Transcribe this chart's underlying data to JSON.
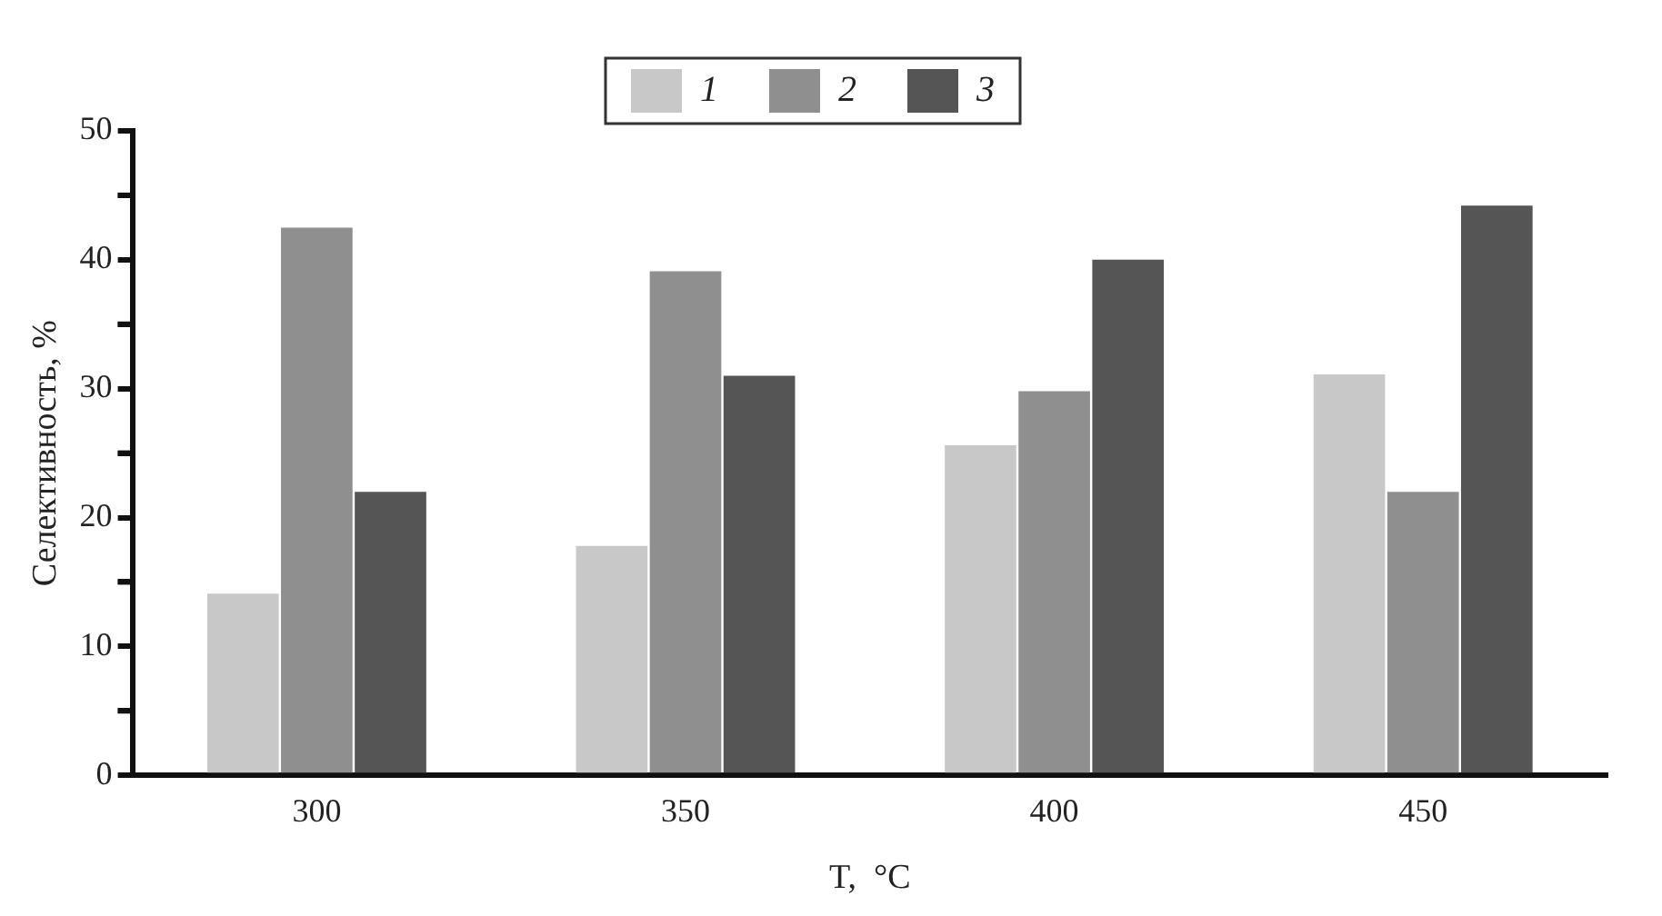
{
  "chart_data": {
    "type": "bar",
    "xlabel": "T,  °C",
    "ylabel": "Селективность, %",
    "categories": [
      "300",
      "350",
      "400",
      "450"
    ],
    "series": [
      {
        "name": "1",
        "color": "#c8c8c8",
        "values": [
          14.1,
          17.8,
          25.6,
          31.1
        ]
      },
      {
        "name": "2",
        "color": "#8f8f8f",
        "values": [
          42.5,
          39.1,
          29.8,
          22.0
        ]
      },
      {
        "name": "3",
        "color": "#555555",
        "values": [
          22.0,
          31.0,
          40.0,
          44.2
        ]
      }
    ],
    "ylim": [
      0,
      50
    ],
    "yticks": [
      0,
      {
        "value": 5,
        "label": null
      },
      10,
      {
        "value": 15,
        "label": null
      },
      20,
      {
        "value": 25,
        "label": null
      },
      30,
      {
        "value": 35,
        "label": null
      },
      40,
      {
        "value": 45,
        "label": null
      },
      50
    ],
    "grid": false,
    "legend": "top"
  }
}
